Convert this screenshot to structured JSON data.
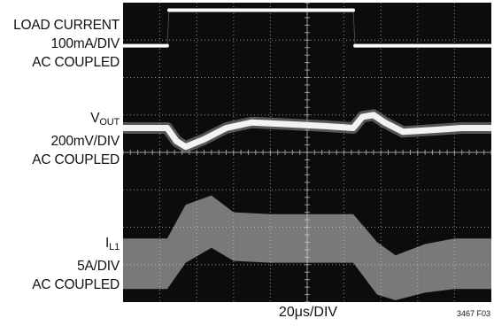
{
  "chart_data": {
    "type": "line",
    "title": "",
    "xlabel": "20μs/DIV",
    "ylabel": "",
    "figure_id": "3467 F03",
    "grid": true,
    "divisions": {
      "x": 10,
      "y": 8
    },
    "xlim_div": [
      0,
      10
    ],
    "ylim_div": [
      0,
      8
    ],
    "channels": [
      {
        "name": "LOAD CURRENT",
        "label_lines": [
          "LOAD CURRENT",
          "100mA/DIV",
          "AC COUPLED"
        ],
        "trace_color": "#ffffff",
        "points_div": [
          [
            0,
            6.85
          ],
          [
            1.2,
            6.85
          ],
          [
            1.25,
            7.8
          ],
          [
            6.25,
            7.8
          ],
          [
            6.3,
            6.85
          ],
          [
            10,
            6.85
          ]
        ]
      },
      {
        "name": "VOUT",
        "label_main": "V",
        "label_sub": "OUT",
        "label_lines": [
          "200mV/DIV",
          "AC COUPLED"
        ],
        "trace_color": "#f2f2f2",
        "points_div": [
          [
            0,
            4.65
          ],
          [
            1.2,
            4.65
          ],
          [
            1.45,
            4.3
          ],
          [
            1.7,
            4.15
          ],
          [
            2.2,
            4.35
          ],
          [
            2.8,
            4.65
          ],
          [
            3.5,
            4.8
          ],
          [
            4.5,
            4.75
          ],
          [
            5.5,
            4.7
          ],
          [
            6.25,
            4.65
          ],
          [
            6.5,
            4.95
          ],
          [
            6.8,
            5.0
          ],
          [
            7.1,
            4.8
          ],
          [
            7.6,
            4.55
          ],
          [
            8.4,
            4.6
          ],
          [
            9.2,
            4.65
          ],
          [
            10,
            4.65
          ]
        ]
      },
      {
        "name": "IL1",
        "label_main": "I",
        "label_sub": "L1",
        "label_lines": [
          "5A/DIV",
          "AC COUPLED"
        ],
        "trace_color": "#d4d4d4",
        "envelope_div": {
          "upper": [
            [
              0,
              1.7
            ],
            [
              1.2,
              1.7
            ],
            [
              1.7,
              2.6
            ],
            [
              2.4,
              2.85
            ],
            [
              3.0,
              2.4
            ],
            [
              4.0,
              2.35
            ],
            [
              5.5,
              2.35
            ],
            [
              6.25,
              2.35
            ],
            [
              6.9,
              1.6
            ],
            [
              7.4,
              1.25
            ],
            [
              8.2,
              1.55
            ],
            [
              9.0,
              1.7
            ],
            [
              10,
              1.7
            ]
          ],
          "lower": [
            [
              0,
              0.35
            ],
            [
              1.2,
              0.35
            ],
            [
              1.7,
              1.05
            ],
            [
              2.4,
              1.45
            ],
            [
              3.0,
              1.1
            ],
            [
              4.0,
              1.05
            ],
            [
              5.5,
              1.05
            ],
            [
              6.25,
              1.05
            ],
            [
              6.9,
              0.2
            ],
            [
              7.4,
              0.05
            ],
            [
              8.2,
              0.25
            ],
            [
              9.0,
              0.35
            ],
            [
              10,
              0.35
            ]
          ]
        }
      }
    ],
    "scope_colors": {
      "background": "#0c0c0c",
      "grid": "#b8b8b8"
    }
  }
}
